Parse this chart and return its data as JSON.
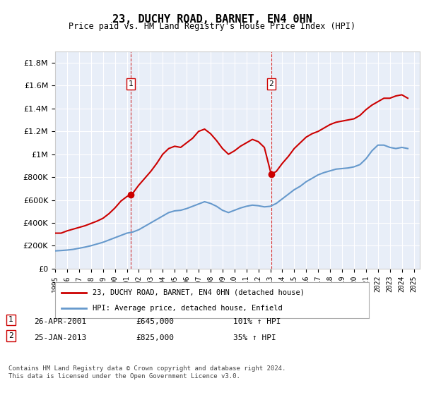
{
  "title": "23, DUCHY ROAD, BARNET, EN4 0HN",
  "subtitle": "Price paid vs. HM Land Registry's House Price Index (HPI)",
  "ylabel_ticks": [
    "£0",
    "£200K",
    "£400K",
    "£600K",
    "£800K",
    "£1M",
    "£1.2M",
    "£1.4M",
    "£1.6M",
    "£1.8M"
  ],
  "ytick_values": [
    0,
    200000,
    400000,
    600000,
    800000,
    1000000,
    1200000,
    1400000,
    1600000,
    1800000
  ],
  "ylim": [
    0,
    1900000
  ],
  "xlim_start": 1995.0,
  "xlim_end": 2025.5,
  "marker1_x": 2001.32,
  "marker1_y": 645000,
  "marker2_x": 2013.07,
  "marker2_y": 825000,
  "vline1_x": 2001.32,
  "vline2_x": 2013.07,
  "sale_color": "#cc0000",
  "hpi_color": "#6699cc",
  "background_plot": "#e8eef8",
  "grid_color": "#ffffff",
  "legend_label_sale": "23, DUCHY ROAD, BARNET, EN4 0HN (detached house)",
  "legend_label_hpi": "HPI: Average price, detached house, Enfield",
  "note1_box": "1",
  "note2_box": "2",
  "note1_date": "26-APR-2001",
  "note1_price": "£645,000",
  "note1_pct": "101% ↑ HPI",
  "note2_date": "25-JAN-2013",
  "note2_price": "£825,000",
  "note2_pct": "35% ↑ HPI",
  "footer": "Contains HM Land Registry data © Crown copyright and database right 2024.\nThis data is licensed under the Open Government Licence v3.0.",
  "sale_line": {
    "years": [
      1995.0,
      1995.5,
      1996.0,
      1996.5,
      1997.0,
      1997.5,
      1998.0,
      1998.5,
      1999.0,
      1999.5,
      2000.0,
      2000.5,
      2001.0,
      2001.32,
      2001.5,
      2002.0,
      2002.5,
      2003.0,
      2003.5,
      2004.0,
      2004.5,
      2005.0,
      2005.5,
      2006.0,
      2006.5,
      2007.0,
      2007.5,
      2008.0,
      2008.5,
      2009.0,
      2009.5,
      2010.0,
      2010.5,
      2011.0,
      2011.5,
      2012.0,
      2012.5,
      2013.07,
      2013.5,
      2014.0,
      2014.5,
      2015.0,
      2015.5,
      2016.0,
      2016.5,
      2017.0,
      2017.5,
      2018.0,
      2018.5,
      2019.0,
      2019.5,
      2020.0,
      2020.5,
      2021.0,
      2021.5,
      2022.0,
      2022.5,
      2023.0,
      2023.5,
      2024.0,
      2024.5
    ],
    "values": [
      310000,
      310000,
      330000,
      345000,
      360000,
      375000,
      395000,
      415000,
      440000,
      480000,
      530000,
      590000,
      630000,
      645000,
      660000,
      730000,
      790000,
      850000,
      920000,
      1000000,
      1050000,
      1070000,
      1060000,
      1100000,
      1140000,
      1200000,
      1220000,
      1180000,
      1120000,
      1050000,
      1000000,
      1030000,
      1070000,
      1100000,
      1130000,
      1110000,
      1060000,
      825000,
      850000,
      920000,
      980000,
      1050000,
      1100000,
      1150000,
      1180000,
      1200000,
      1230000,
      1260000,
      1280000,
      1290000,
      1300000,
      1310000,
      1340000,
      1390000,
      1430000,
      1460000,
      1490000,
      1490000,
      1510000,
      1520000,
      1490000
    ]
  },
  "hpi_line": {
    "years": [
      1995.0,
      1995.5,
      1996.0,
      1996.5,
      1997.0,
      1997.5,
      1998.0,
      1998.5,
      1999.0,
      1999.5,
      2000.0,
      2000.5,
      2001.0,
      2001.5,
      2002.0,
      2002.5,
      2003.0,
      2003.5,
      2004.0,
      2004.5,
      2005.0,
      2005.5,
      2006.0,
      2006.5,
      2007.0,
      2007.5,
      2008.0,
      2008.5,
      2009.0,
      2009.5,
      2010.0,
      2010.5,
      2011.0,
      2011.5,
      2012.0,
      2012.5,
      2013.0,
      2013.5,
      2014.0,
      2014.5,
      2015.0,
      2015.5,
      2016.0,
      2016.5,
      2017.0,
      2017.5,
      2018.0,
      2018.5,
      2019.0,
      2019.5,
      2020.0,
      2020.5,
      2021.0,
      2021.5,
      2022.0,
      2022.5,
      2023.0,
      2023.5,
      2024.0,
      2024.5
    ],
    "values": [
      155000,
      158000,
      162000,
      168000,
      178000,
      188000,
      200000,
      215000,
      230000,
      250000,
      270000,
      290000,
      310000,
      320000,
      340000,
      370000,
      400000,
      430000,
      460000,
      490000,
      505000,
      510000,
      525000,
      545000,
      565000,
      585000,
      570000,
      545000,
      510000,
      490000,
      510000,
      530000,
      545000,
      555000,
      550000,
      540000,
      545000,
      570000,
      610000,
      650000,
      690000,
      720000,
      760000,
      790000,
      820000,
      840000,
      855000,
      870000,
      875000,
      880000,
      890000,
      910000,
      960000,
      1030000,
      1080000,
      1080000,
      1060000,
      1050000,
      1060000,
      1050000
    ]
  }
}
